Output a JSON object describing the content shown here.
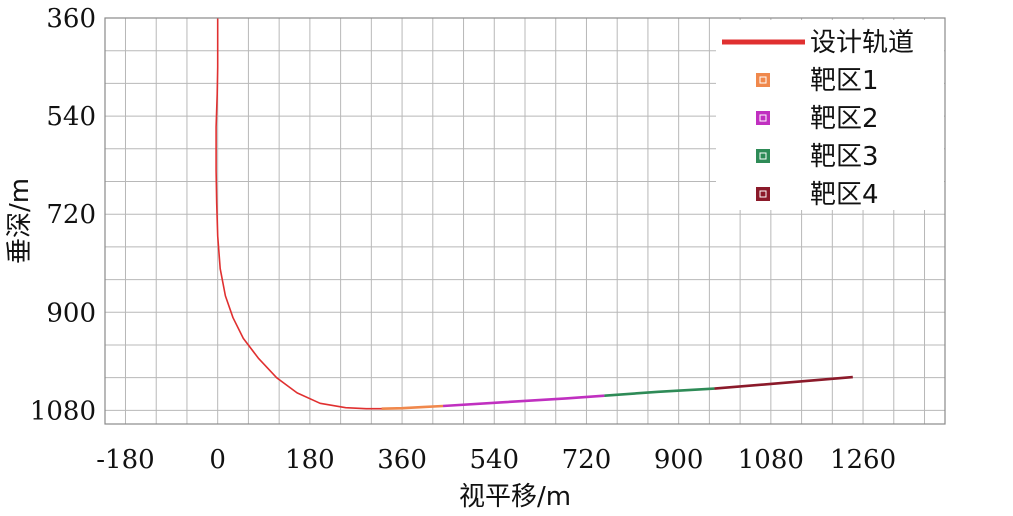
{
  "chart_data": {
    "type": "line",
    "title": "",
    "xlabel": "视平移/m",
    "ylabel": "垂深/m",
    "xlim": [
      -220,
      1420
    ],
    "ylim": [
      1105,
      360
    ],
    "y_inverted": true,
    "grid": true,
    "x_ticks": [
      "-180",
      "0",
      "180",
      "360",
      "540",
      "720",
      "900",
      "1080",
      "1260"
    ],
    "x_tick_values": [
      -180,
      0,
      180,
      360,
      540,
      720,
      900,
      1080,
      1260
    ],
    "y_ticks": [
      "360",
      "540",
      "720",
      "900",
      "1080"
    ],
    "y_tick_values": [
      360,
      540,
      720,
      900,
      1080
    ],
    "legend_position": "top-right",
    "series": [
      {
        "name": "设计轨道",
        "color": "#e03030",
        "x": [
          0,
          0,
          -1,
          -3,
          -3,
          -2,
          0,
          5,
          15,
          30,
          50,
          80,
          115,
          155,
          200,
          250,
          290,
          330,
          355
        ],
        "y": [
          360,
          450,
          500,
          560,
          640,
          700,
          760,
          820,
          870,
          910,
          948,
          985,
          1020,
          1048,
          1067,
          1075,
          1077,
          1077,
          1077
        ]
      },
      {
        "name": "靶区1",
        "color": "#f0884c",
        "x": [
          320,
          360,
          400,
          440
        ],
        "y": [
          1077,
          1076,
          1074,
          1072
        ]
      },
      {
        "name": "靶区2",
        "color": "#c030c0",
        "x": [
          440,
          560,
          680,
          755
        ],
        "y": [
          1072,
          1065,
          1058,
          1053
        ]
      },
      {
        "name": "靶区3",
        "color": "#2e8b57",
        "x": [
          755,
          860,
          970
        ],
        "y": [
          1053,
          1046,
          1040
        ]
      },
      {
        "name": "靶区4",
        "color": "#8b1a2a",
        "x": [
          970,
          1100,
          1240
        ],
        "y": [
          1040,
          1030,
          1019
        ]
      }
    ]
  }
}
